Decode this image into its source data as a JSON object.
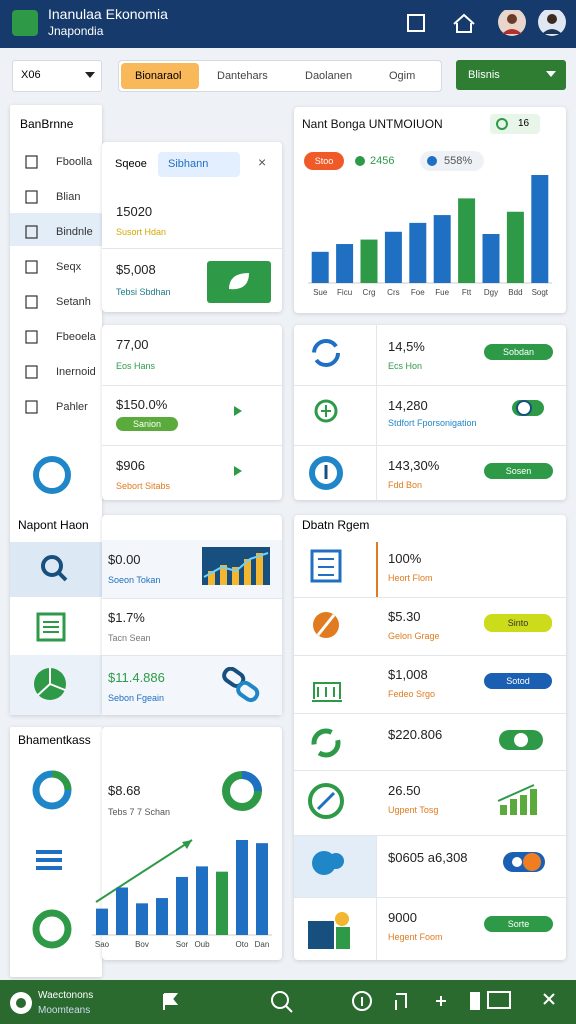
{
  "header": {
    "title": "Inanulaa Ekonomia",
    "subtitle": "Jnapondia"
  },
  "toolbar": {
    "dropdown": "X06",
    "tabs": [
      "Bionaraol",
      "Dantehars",
      "Daolanen",
      "Ogim"
    ],
    "button": "Blisnis"
  },
  "sidebar": {
    "title": "BanBrnne",
    "items": [
      "Fboolla",
      "Blian",
      "Bindnle",
      "Seqx",
      "Setanh",
      "Fbeoela",
      "Inernoid",
      "Pahler"
    ],
    "section": "Napont Haon"
  },
  "sidebar2": {
    "title": "Bhamentkass"
  },
  "summary_card": {
    "tabs": [
      "Sqeoe",
      "Sibhann"
    ],
    "close": "×",
    "rows": [
      {
        "value": "15020",
        "label": "Susort Hdan"
      },
      {
        "value": "$5,008",
        "label": "Tebsi Sbdhan"
      }
    ]
  },
  "stats_card": {
    "rows": [
      {
        "value": "77,00",
        "label": "Eos Hans"
      },
      {
        "value": "$150.0%",
        "pill": "Sanion"
      },
      {
        "value": "$906",
        "label": "Sebort Sitabs"
      }
    ]
  },
  "metrics_card": {
    "rows": [
      {
        "value": "$0.00",
        "label": "Soeon Tokan"
      },
      {
        "value": "$1.7%",
        "label": "Tacn Sean"
      },
      {
        "value": "$11.4.886",
        "label": "Sebon Fgeain"
      }
    ]
  },
  "trend_card": {
    "value": "$8.68",
    "label": "Tebs 7 7 Schan",
    "chart": {
      "type": "bar",
      "categories": [
        "Sao",
        null,
        "Bov",
        null,
        "Sor",
        "Oub",
        null,
        "Oto",
        "Dan"
      ],
      "values": [
        25,
        45,
        30,
        35,
        55,
        65,
        60,
        90,
        87
      ],
      "colors": [
        "#1f6fc2",
        "#1f6fc2",
        "#1f6fc2",
        "#1f6fc2",
        "#1f6fc2",
        "#1f6fc2",
        "#2e9a48",
        "#1f6fc2",
        "#1f6fc2"
      ]
    }
  },
  "main_chart": {
    "title": "Nant Bonga UNTMOIUON",
    "badge": "16",
    "legend": [
      "Stoo",
      "2456",
      "558%"
    ],
    "chart": {
      "type": "bar",
      "categories": [
        "Sue",
        "Ficu",
        "Crg",
        "Crs",
        "Foe",
        "Fue",
        "Ftt",
        "Dgy",
        "Bdd",
        "Sogt"
      ],
      "values": [
        28,
        35,
        39,
        46,
        54,
        61,
        76,
        44,
        64,
        97
      ],
      "colors": [
        "#1f6fc2",
        "#1f6fc2",
        "#2e9a48",
        "#1f6fc2",
        "#1f6fc2",
        "#1f6fc2",
        "#2e9a48",
        "#1f6fc2",
        "#2e9a48",
        "#1f6fc2"
      ]
    }
  },
  "growth_card": {
    "rows": [
      {
        "value": "14,5%",
        "label": "Ecs Hon",
        "pill": "Sobdan"
      },
      {
        "value": "14,280",
        "label": "Stdfort Fporsonigation"
      },
      {
        "value": "143,30%",
        "label": "Fdd Bon",
        "pill": "Sosen"
      }
    ]
  },
  "data_card": {
    "title": "Dbatn Rgem",
    "rows": [
      {
        "value": "100%",
        "label": "Heort Flom"
      },
      {
        "value": "$5.30",
        "label": "Gelon Grage",
        "pill": "Sinto"
      },
      {
        "value": "$1,008",
        "label": "Fedeo Srgo",
        "pill": "Sotod"
      },
      {
        "value": "$220.806"
      },
      {
        "value": "26.50",
        "label": "Ugpent Tosg"
      },
      {
        "value": "$0605 a6,308"
      },
      {
        "value": "9000",
        "label": "Hegent Foom",
        "pill": "Sorte"
      }
    ]
  },
  "bottom_nav": {
    "items": [
      "Waectonons",
      "Moomteans"
    ]
  }
}
